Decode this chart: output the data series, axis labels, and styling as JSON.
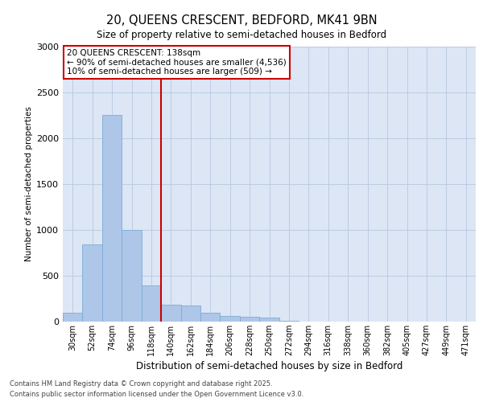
{
  "title_line1": "20, QUEENS CRESCENT, BEDFORD, MK41 9BN",
  "title_line2": "Size of property relative to semi-detached houses in Bedford",
  "xlabel": "Distribution of semi-detached houses by size in Bedford",
  "ylabel": "Number of semi-detached properties",
  "annotation_title": "20 QUEENS CRESCENT: 138sqm",
  "annotation_line2": "← 90% of semi-detached houses are smaller (4,536)",
  "annotation_line3": "10% of semi-detached houses are larger (509) →",
  "footnote1": "Contains HM Land Registry data © Crown copyright and database right 2025.",
  "footnote2": "Contains public sector information licensed under the Open Government Licence v3.0.",
  "categories": [
    "30sqm",
    "52sqm",
    "74sqm",
    "96sqm",
    "118sqm",
    "140sqm",
    "162sqm",
    "184sqm",
    "206sqm",
    "228sqm",
    "250sqm",
    "272sqm",
    "294sqm",
    "316sqm",
    "338sqm",
    "360sqm",
    "382sqm",
    "405sqm",
    "427sqm",
    "449sqm",
    "471sqm"
  ],
  "values": [
    100,
    840,
    2250,
    1000,
    390,
    180,
    175,
    100,
    65,
    55,
    40,
    8,
    3,
    2,
    1,
    1,
    1,
    1,
    0,
    0,
    0
  ],
  "bar_color": "#aec6e8",
  "bar_edge_color": "#7aadd4",
  "vline_x_index": 5,
  "vline_color": "#cc0000",
  "annotation_box_color": "#cc0000",
  "annotation_text_color": "#000000",
  "background_color": "#ffffff",
  "plot_bg_color": "#dce6f5",
  "grid_color": "#b8c8e0",
  "ylim": [
    0,
    3000
  ],
  "yticks": [
    0,
    500,
    1000,
    1500,
    2000,
    2500,
    3000
  ]
}
